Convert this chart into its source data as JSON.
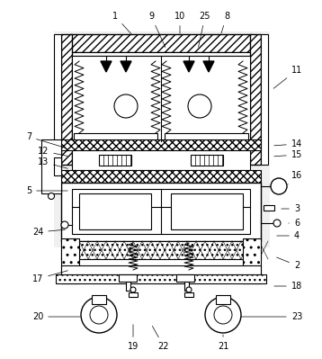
{
  "bg_color": "#ffffff",
  "labels_config": [
    [
      "1",
      128,
      18,
      148,
      40
    ],
    [
      "9",
      168,
      18,
      185,
      55
    ],
    [
      "10",
      200,
      18,
      200,
      40
    ],
    [
      "25",
      228,
      18,
      220,
      55
    ],
    [
      "8",
      252,
      18,
      245,
      40
    ],
    [
      "11",
      330,
      78,
      302,
      100
    ],
    [
      "7",
      32,
      152,
      75,
      165
    ],
    [
      "12",
      48,
      168,
      78,
      174
    ],
    [
      "13",
      48,
      180,
      78,
      188
    ],
    [
      "14",
      330,
      160,
      302,
      162
    ],
    [
      "15",
      330,
      172,
      302,
      174
    ],
    [
      "16",
      330,
      195,
      318,
      207
    ],
    [
      "5",
      32,
      212,
      78,
      212
    ],
    [
      "3",
      330,
      232,
      310,
      232
    ],
    [
      "6",
      330,
      248,
      318,
      248
    ],
    [
      "4",
      330,
      262,
      305,
      262
    ],
    [
      "24",
      42,
      258,
      75,
      255
    ],
    [
      "2",
      330,
      295,
      305,
      285
    ],
    [
      "17",
      42,
      310,
      78,
      300
    ],
    [
      "18",
      330,
      318,
      302,
      318
    ],
    [
      "20",
      42,
      352,
      92,
      352
    ],
    [
      "19",
      148,
      385,
      148,
      358
    ],
    [
      "22",
      182,
      385,
      168,
      360
    ],
    [
      "21",
      248,
      385,
      248,
      372
    ],
    [
      "23",
      330,
      352,
      265,
      352
    ]
  ]
}
